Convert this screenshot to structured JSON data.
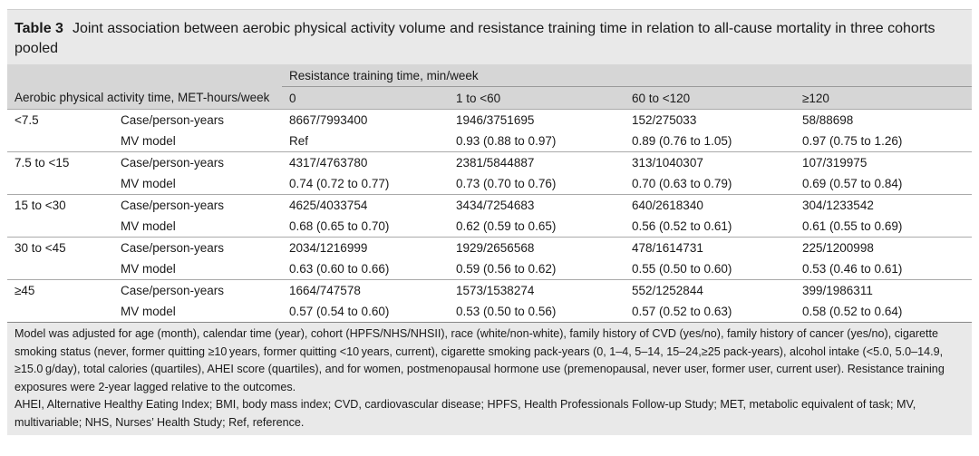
{
  "table": {
    "label": "Table 3",
    "title": "Joint association between aerobic physical activity volume and resistance training time in relation to all-cause mortality in three cohorts pooled",
    "header": {
      "rt_group": "Resistance training time, min/week",
      "row_header": "Aerobic physical activity time, MET-hours/week",
      "columns": [
        "0",
        "1 to <60",
        "60 to <120",
        "≥120"
      ]
    },
    "groups": [
      {
        "label": "<7.5",
        "rows": [
          {
            "label": "Case/person-years",
            "values": [
              "8667/7993400",
              "1946/3751695",
              "152/275033",
              "58/88698"
            ]
          },
          {
            "label": "MV model",
            "values": [
              "Ref",
              "0.93 (0.88 to 0.97)",
              "0.89 (0.76 to 1.05)",
              "0.97 (0.75 to 1.26)"
            ]
          }
        ]
      },
      {
        "label": "7.5 to <15",
        "rows": [
          {
            "label": "Case/person-years",
            "values": [
              "4317/4763780",
              "2381/5844887",
              "313/1040307",
              "107/319975"
            ]
          },
          {
            "label": "MV model",
            "values": [
              "0.74 (0.72 to 0.77)",
              "0.73 (0.70 to 0.76)",
              "0.70 (0.63 to 0.79)",
              "0.69 (0.57 to 0.84)"
            ]
          }
        ]
      },
      {
        "label": "15 to <30",
        "rows": [
          {
            "label": "Case/person-years",
            "values": [
              "4625/4033754",
              "3434/7254683",
              "640/2618340",
              "304/1233542"
            ]
          },
          {
            "label": "MV model",
            "values": [
              "0.68 (0.65 to 0.70)",
              "0.62 (0.59 to 0.65)",
              "0.56 (0.52 to 0.61)",
              "0.61 (0.55 to 0.69)"
            ]
          }
        ]
      },
      {
        "label": "30 to <45",
        "rows": [
          {
            "label": "Case/person-years",
            "values": [
              "2034/1216999",
              "1929/2656568",
              "478/1614731",
              "225/1200998"
            ]
          },
          {
            "label": "MV model",
            "values": [
              "0.63 (0.60 to 0.66)",
              "0.59 (0.56 to 0.62)",
              "0.55 (0.50 to 0.60)",
              "0.53 (0.46 to 0.61)"
            ]
          }
        ]
      },
      {
        "label": "≥45",
        "rows": [
          {
            "label": "Case/person-years",
            "values": [
              "1664/747578",
              "1573/1538274",
              "552/1252844",
              "399/1986311"
            ]
          },
          {
            "label": "MV model",
            "values": [
              "0.57 (0.54 to 0.60)",
              "0.53 (0.50 to 0.56)",
              "0.57 (0.52 to 0.63)",
              "0.58 (0.52 to 0.64)"
            ]
          }
        ]
      }
    ],
    "notes": [
      "Model was adjusted for age (month), calendar time (year), cohort (HPFS/NHS/NHSII), race (white/non-white), family history of CVD (yes/no), family history of cancer (yes/no), cigarette smoking status (never, former quitting ≥10 years, former quitting <10 years, current), cigarette smoking pack-years (0, 1–4, 5–14, 15–24,≥25 pack-years), alcohol intake (<5.0, 5.0–14.9, ≥15.0 g/day), total calories (quartiles), AHEI score (quartiles), and for women, postmenopausal hormone use (premenopausal, never user, former user, current user). Resistance training exposures were 2-year lagged relative to the outcomes.",
      "AHEI, Alternative Healthy Eating Index; BMI, body mass index; CVD, cardiovascular disease; HPFS, Health Professionals Follow-up Study; MET, metabolic equivalent of task; MV, multivariable; NHS, Nurses’ Health Study; Ref, reference."
    ]
  }
}
